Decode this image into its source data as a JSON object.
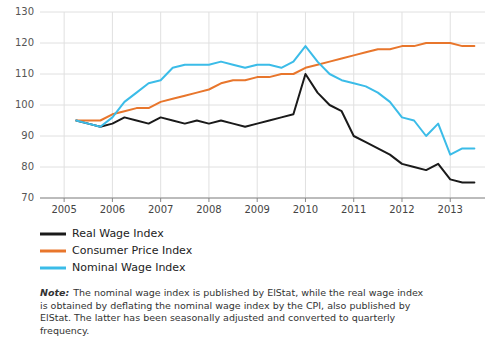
{
  "chart_data": {
    "type": "line",
    "x": [
      2005.25,
      2005.5,
      2005.75,
      2006.0,
      2006.25,
      2006.5,
      2006.75,
      2007.0,
      2007.25,
      2007.5,
      2007.75,
      2008.0,
      2008.25,
      2008.5,
      2008.75,
      2009.0,
      2009.25,
      2009.5,
      2009.75,
      2010.0,
      2010.25,
      2010.5,
      2010.75,
      2011.0,
      2011.25,
      2011.5,
      2011.75,
      2012.0,
      2012.25,
      2012.5,
      2012.75,
      2013.0,
      2013.25,
      2013.5
    ],
    "series": [
      {
        "name": "Real Wage Index",
        "color": "#1a1a1a",
        "values": [
          95,
          94,
          93,
          94,
          96,
          95,
          94,
          96,
          95,
          94,
          95,
          94,
          95,
          94,
          93,
          94,
          95,
          96,
          97,
          110,
          104,
          100,
          98,
          90,
          88,
          86,
          84,
          81,
          80,
          79,
          81,
          76,
          75,
          75
        ]
      },
      {
        "name": "Consumer Price Index",
        "color": "#E8762C",
        "values": [
          95,
          95,
          95,
          97,
          98,
          99,
          99,
          101,
          102,
          103,
          104,
          105,
          107,
          108,
          108,
          109,
          109,
          110,
          110,
          112,
          113,
          114,
          115,
          116,
          117,
          118,
          118,
          119,
          119,
          120,
          120,
          120,
          119,
          119
        ]
      },
      {
        "name": "Nominal Wage Index",
        "color": "#3BBCE8",
        "values": [
          95,
          94,
          93,
          96,
          101,
          104,
          107,
          108,
          112,
          113,
          113,
          113,
          114,
          113,
          112,
          113,
          113,
          112,
          114,
          119,
          114,
          110,
          108,
          107,
          106,
          104,
          101,
          96,
          95,
          90,
          94,
          84,
          86,
          86
        ]
      }
    ],
    "xlim": [
      2004.5,
      2013.72
    ],
    "xticks": [
      2005,
      2006,
      2007,
      2008,
      2009,
      2010,
      2011,
      2012,
      2013
    ],
    "ylim": [
      70,
      130
    ],
    "yticks": [
      70,
      80,
      90,
      100,
      110,
      120,
      130
    ],
    "grid": true,
    "legend": "bottom",
    "annotations": [
      "Note:",
      "The nominal wage index is published by ElStat, while the real wage index",
      "is obtained by deflating the nominal wage index by the CPI, also published by",
      "ElStat. The latter has been seasonally adjusted and converted to quarterly",
      "frequency."
    ]
  }
}
